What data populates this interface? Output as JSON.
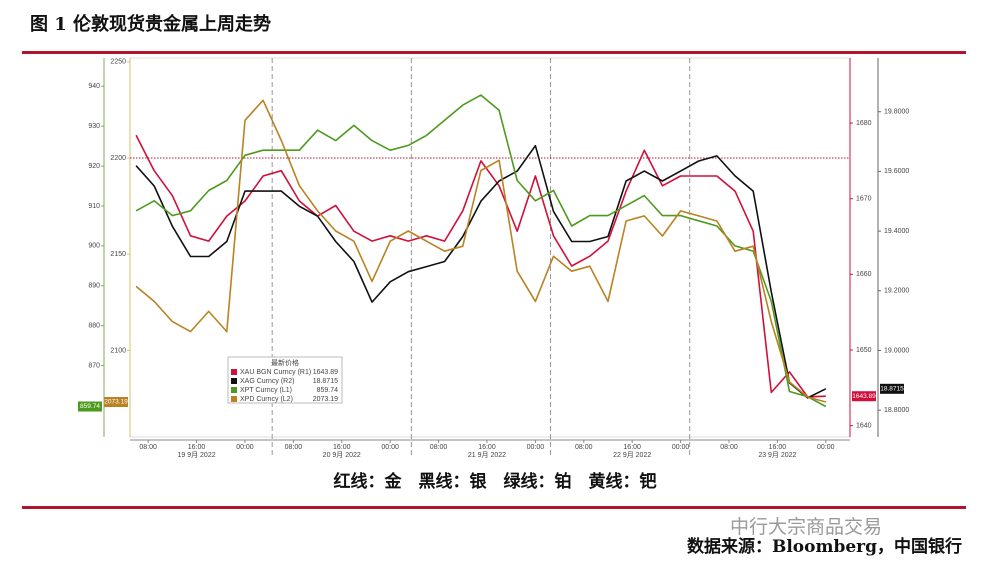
{
  "header": {
    "title": "图 1 伦敦现货贵金属上周走势"
  },
  "chart_data": {
    "type": "line",
    "legend_title": "最新价格",
    "xlim": [
      5,
      124
    ],
    "xticks": [
      {
        "value": 8,
        "label": "08:00"
      },
      {
        "value": 16,
        "label": "16:00"
      },
      {
        "value": 24,
        "label": "00:00"
      },
      {
        "value": 32,
        "label": "08:00"
      },
      {
        "value": 40,
        "label": "16:00"
      },
      {
        "value": 48,
        "label": "00:00"
      },
      {
        "value": 56,
        "label": "08:00"
      },
      {
        "value": 64,
        "label": "16:00"
      },
      {
        "value": 72,
        "label": "00:00"
      },
      {
        "value": 80,
        "label": "08:00"
      },
      {
        "value": 88,
        "label": "16:00"
      },
      {
        "value": 96,
        "label": "00:00"
      },
      {
        "value": 104,
        "label": "08:00"
      },
      {
        "value": 112,
        "label": "16:00"
      },
      {
        "value": 120,
        "label": "00:00"
      }
    ],
    "xdate_labels": [
      {
        "value": 16,
        "label": "19 9月 2022"
      },
      {
        "value": 40,
        "label": "20 9月 2022"
      },
      {
        "value": 64,
        "label": "21 9月 2022"
      },
      {
        "value": 88,
        "label": "22 9月 2022"
      },
      {
        "value": 112,
        "label": "23 9月 2022"
      }
    ],
    "day_breaks": [
      28.5,
      51.5,
      74.5,
      97.5
    ],
    "reference_line": {
      "axis": "y2",
      "value": 2200,
      "color": "#c8102e"
    },
    "ylim": [
      852.1,
      947.1
    ],
    "yticks": [
      870,
      880,
      890,
      900,
      910,
      920,
      930,
      940
    ],
    "y2lim": [
      2055,
      2252
    ],
    "y2ticks": [
      2100,
      2150,
      2200,
      2250
    ],
    "y3lim": [
      1638.5,
      1688.6
    ],
    "y3ticks": [
      1640,
      1650,
      1660,
      1670,
      1680
    ],
    "y4lim": [
      18.71,
      19.98
    ],
    "y4ticks": [
      {
        "value": 18.8,
        "label": "18.8000"
      },
      {
        "value": 19.0,
        "label": "19.0000"
      },
      {
        "value": 19.2,
        "label": "19.2000"
      },
      {
        "value": 19.4,
        "label": "19.4000"
      },
      {
        "value": 19.6,
        "label": "19.6000"
      },
      {
        "value": 19.8,
        "label": "19.8000"
      }
    ],
    "x": [
      6,
      9,
      12,
      15,
      18,
      21,
      24,
      27,
      30,
      33,
      36,
      39,
      42,
      45,
      48,
      51,
      54,
      57,
      60,
      63,
      66,
      69,
      72,
      75,
      78,
      81,
      84,
      87,
      90,
      93,
      96,
      99,
      102,
      105,
      108,
      111,
      114,
      117,
      120
    ],
    "series": [
      {
        "name": "XAU BGN Curncy (R1)",
        "axis": "y3",
        "color": "#d0103a",
        "last_value": 1643.89,
        "values": [
          1678.4,
          1673.7,
          1670.4,
          1665.1,
          1664.4,
          1667.7,
          1669.7,
          1673.0,
          1673.7,
          1669.7,
          1667.7,
          1669.1,
          1665.7,
          1664.4,
          1665.1,
          1664.4,
          1665.1,
          1664.4,
          1668.4,
          1675.0,
          1671.7,
          1665.7,
          1673.0,
          1665.1,
          1661.1,
          1662.4,
          1664.4,
          1671.0,
          1676.4,
          1671.7,
          1673.0,
          1673.0,
          1673.0,
          1671.0,
          1665.7,
          1644.4,
          1647.1,
          1643.8,
          1643.89
        ]
      },
      {
        "name": "XAG Curncy (R2)",
        "axis": "y4",
        "color": "#111111",
        "last_value": 18.8715,
        "values": [
          19.619,
          19.551,
          19.416,
          19.315,
          19.315,
          19.365,
          19.534,
          19.534,
          19.534,
          19.483,
          19.45,
          19.365,
          19.298,
          19.162,
          19.23,
          19.264,
          19.281,
          19.298,
          19.382,
          19.5,
          19.568,
          19.601,
          19.686,
          19.466,
          19.365,
          19.365,
          19.382,
          19.568,
          19.601,
          19.568,
          19.601,
          19.635,
          19.652,
          19.585,
          19.534,
          19.196,
          18.892,
          18.841,
          18.8715
        ]
      },
      {
        "name": "XPT Curncy (L1)",
        "axis": "y",
        "color": "#4e9a1e",
        "last_value": 859.74,
        "values": [
          908.8,
          911.3,
          907.6,
          908.8,
          913.9,
          916.4,
          922.7,
          924.0,
          924.0,
          924.0,
          929.0,
          926.4,
          930.2,
          926.4,
          924.0,
          925.2,
          927.7,
          931.5,
          935.3,
          937.8,
          934.0,
          916.4,
          911.3,
          913.9,
          905.0,
          907.6,
          907.6,
          910.1,
          912.6,
          907.6,
          907.6,
          906.3,
          905.0,
          900.0,
          898.7,
          886.1,
          863.5,
          862.2,
          859.74
        ]
      },
      {
        "name": "XPD Curncy (L2)",
        "axis": "y2",
        "color": "#b98222",
        "last_value": 2073.19,
        "values": [
          2133.3,
          2125.5,
          2115.0,
          2109.8,
          2120.3,
          2109.8,
          2219.6,
          2230.0,
          2209.1,
          2185.6,
          2172.5,
          2162.1,
          2156.8,
          2135.9,
          2156.8,
          2162.1,
          2156.8,
          2151.6,
          2154.2,
          2193.5,
          2198.8,
          2141.2,
          2125.5,
          2149.0,
          2141.2,
          2143.8,
          2125.5,
          2167.3,
          2169.9,
          2159.5,
          2172.5,
          2169.9,
          2167.3,
          2151.6,
          2154.2,
          2115.0,
          2083.6,
          2075.8,
          2073.19
        ]
      }
    ]
  },
  "caption": "红线：金　黑线：银　绿线：铂　黄线：钯",
  "watermark": "中行大宗商品交易",
  "source": "数据来源：Bloomberg，中国银行"
}
